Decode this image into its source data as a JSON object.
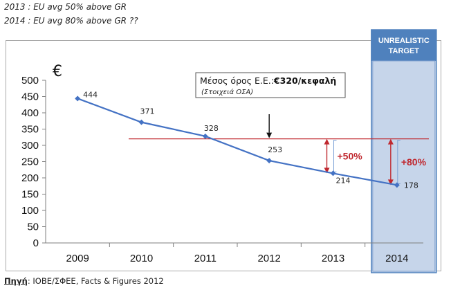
{
  "notes": {
    "line1": "2013 : EU avg 50% above GR",
    "line2": "2014 : EU avg 80% above GR ??"
  },
  "source": {
    "prefix": "Πηγή",
    "text": ": IOBE/ΣΦΕΕ, Facts & Figures 2012"
  },
  "colors": {
    "series": "#4472c4",
    "reference_line": "#c0282f",
    "highlight_fill": "#c6d5ea",
    "highlight_header": "#4f81bd",
    "percent_text": "#c0282f"
  },
  "chart_data": {
    "type": "line",
    "x": [
      "2009",
      "2010",
      "2011",
      "2012",
      "2013",
      "2014"
    ],
    "series": [
      {
        "values": [
          444,
          371,
          328,
          253,
          214,
          178
        ]
      }
    ],
    "y_unit_symbol": "€",
    "ylim": [
      0,
      500
    ],
    "y_ticks": [
      0,
      50,
      100,
      150,
      200,
      250,
      300,
      350,
      400,
      450,
      500
    ],
    "grid": false,
    "reference_line": {
      "value": 320
    },
    "callout": {
      "label_prefix": "Μέσος όρος Ε.Ε.:",
      "label_value": "€320/κεφαλή",
      "label_sub": "(Στοιχειά ΟΣΑ)"
    },
    "highlight": {
      "category": "2014",
      "label_line1": "UNREALISTIC",
      "label_line2": "TARGET"
    },
    "gaps": [
      {
        "category": "2013",
        "label": "+50%"
      },
      {
        "category": "2014",
        "label": "+80%"
      }
    ]
  }
}
